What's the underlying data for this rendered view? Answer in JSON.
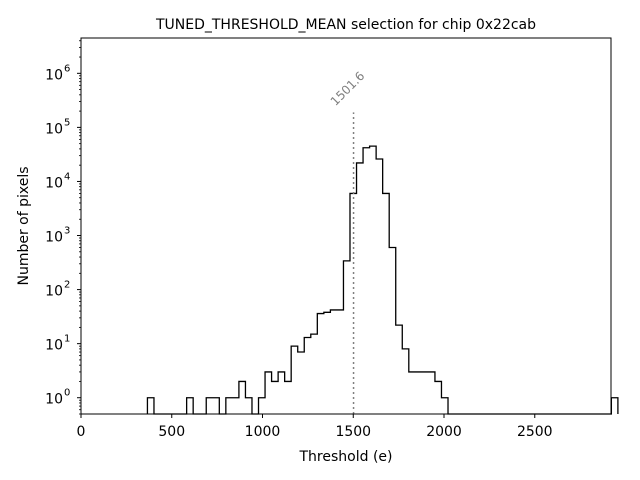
{
  "chart_data": {
    "type": "histogram",
    "title": "TUNED_THRESHOLD_MEAN selection for chip 0x22cab",
    "xlabel": "Threshold (e)",
    "ylabel": "Number of pixels",
    "xlim": [
      0,
      2920
    ],
    "ylim": [
      0.5,
      4500000
    ],
    "yscale": "log",
    "x_ticks": [
      0,
      500,
      1000,
      1500,
      2000,
      2500
    ],
    "x_tick_labels": [
      "0",
      "500",
      "1000",
      "1500",
      "2000",
      "2500"
    ],
    "y_ticks": [
      1,
      10,
      100,
      1000,
      10000,
      100000,
      1000000
    ],
    "y_tick_bases": [
      "10",
      "10",
      "10",
      "10",
      "10",
      "10",
      "10"
    ],
    "y_tick_exps": [
      "0",
      "1",
      "2",
      "3",
      "4",
      "5",
      "6"
    ],
    "bin_width": 36,
    "bin_edges_start": 366,
    "counts": [
      1,
      0,
      0,
      0,
      0,
      0,
      1,
      0,
      0,
      1,
      1,
      0,
      1,
      1,
      2,
      1,
      0,
      1,
      3,
      2,
      3,
      2,
      9,
      7,
      13,
      15,
      36,
      38,
      42,
      42,
      340,
      6000,
      22000,
      42000,
      45000,
      26000,
      6000,
      600,
      22,
      8,
      3,
      3,
      3,
      3,
      2,
      1,
      0,
      0,
      0,
      0,
      0,
      0,
      0,
      0,
      0,
      0,
      0,
      0,
      0,
      0,
      0,
      0,
      0,
      0,
      0,
      0,
      0,
      0,
      0,
      0,
      0,
      1
    ],
    "annotation": {
      "x": 1501.6,
      "label": "1501.6",
      "line_top": 190000
    },
    "colors": {
      "step": "#000000",
      "annotation": "#808080"
    }
  }
}
